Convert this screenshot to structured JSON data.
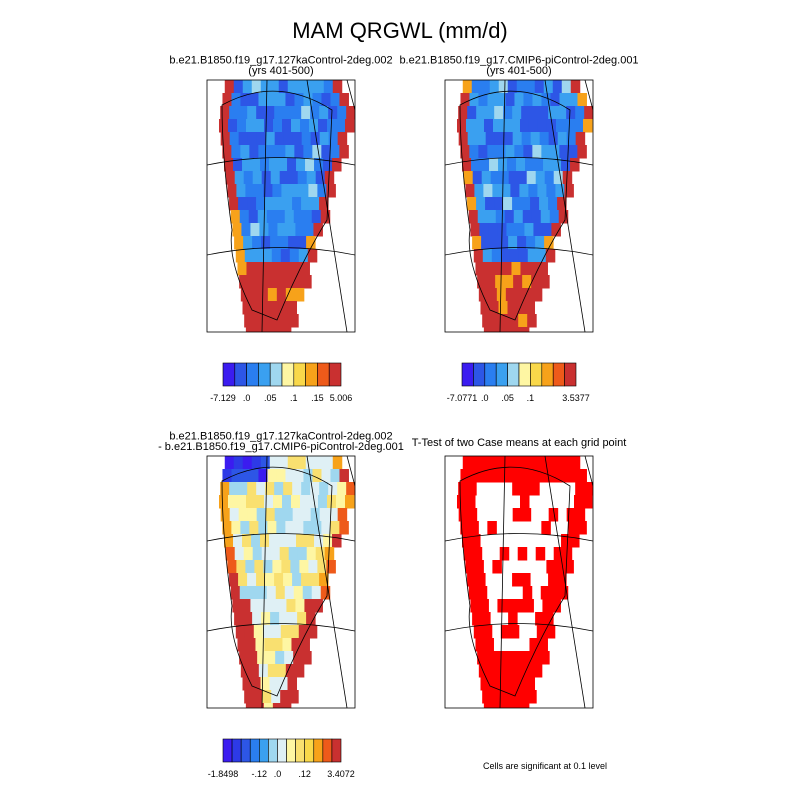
{
  "title": "MAM QRGWL (mm/d)",
  "panels": [
    {
      "title_lines": [
        "b.e21.B1850.f19_g17.127kaControl-2deg.002",
        "(yrs 401-500)"
      ],
      "colorbar": {
        "colors": [
          "#3b1cf0",
          "#2d56e6",
          "#2a7ef0",
          "#3aa0f0",
          "#9fd7ef",
          "#fef6a3",
          "#f9d84a",
          "#f7a21a",
          "#ee5a1a",
          "#c93030"
        ],
        "labels": [
          "-7.129",
          null,
          ".0",
          null,
          ".05",
          null,
          ".1",
          null,
          ".15",
          null,
          "5.006"
        ]
      }
    },
    {
      "title_lines": [
        "b.e21.B1850.f19_g17.CMIP6-piControl-2deg.001",
        "(yrs 401-500)"
      ],
      "colorbar": {
        "colors": [
          "#3b1cf0",
          "#2d56e6",
          "#2a7ef0",
          "#3aa0f0",
          "#9fd7ef",
          "#fef6a3",
          "#f9d84a",
          "#f7a21a",
          "#ee5a1a",
          "#c93030"
        ],
        "labels": [
          "-7.0771",
          null,
          ".0",
          null,
          ".05",
          null,
          ".1",
          null,
          null,
          null,
          "3.5377"
        ]
      }
    },
    {
      "title_lines": [
        "b.e21.B1850.f19_g17.127kaControl-2deg.002",
        "- b.e21.B1850.f19_g17.CMIP6-piControl-2deg.001"
      ],
      "colorbar": {
        "colors": [
          "#3b1cf0",
          "#2d3ae6",
          "#2d56e6",
          "#2a7ef0",
          "#3aa0f0",
          "#9fd7ef",
          "#dff0f5",
          "#fef6a3",
          "#f9e070",
          "#f9d84a",
          "#f7a21a",
          "#ee5a1a",
          "#c93030"
        ],
        "labels": [
          "-1.8498",
          null,
          null,
          null,
          "-.12",
          null,
          ".0",
          null,
          null,
          ".12",
          null,
          null,
          null,
          "3.4072"
        ]
      }
    },
    {
      "title_lines": [
        "T-Test of two Case means at each grid point"
      ],
      "note": "Cells are significant at 0.1 level"
    }
  ]
}
